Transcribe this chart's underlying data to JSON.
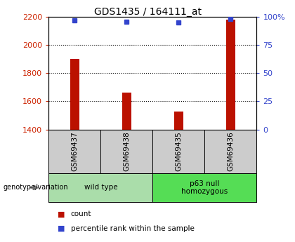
{
  "title": "GDS1435 / 164111_at",
  "samples": [
    "GSM69437",
    "GSM69438",
    "GSM69435",
    "GSM69436"
  ],
  "counts": [
    1900,
    1660,
    1530,
    2180
  ],
  "percentiles": [
    97,
    96,
    95,
    98
  ],
  "groups": [
    {
      "label": "wild type",
      "samples": [
        0,
        1
      ],
      "color": "#66dd66"
    },
    {
      "label": "p63 null\nhomozygous",
      "samples": [
        2,
        3
      ],
      "color": "#44cc44"
    }
  ],
  "ylim_left": [
    1400,
    2200
  ],
  "ylim_right": [
    0,
    100
  ],
  "yticks_left": [
    1400,
    1600,
    1800,
    2000,
    2200
  ],
  "yticks_right": [
    0,
    25,
    50,
    75,
    100
  ],
  "ytick_labels_right": [
    "0",
    "25",
    "50",
    "75",
    "100%"
  ],
  "bar_color": "#bb1100",
  "dot_color": "#3344cc",
  "label_color_left": "#cc2200",
  "label_color_right": "#3344cc",
  "legend_count_label": "count",
  "legend_percentile_label": "percentile rank within the sample",
  "genotype_label": "genotype/variation",
  "sample_box_color": "#cccccc",
  "group1_color": "#aaddaa",
  "group2_color": "#55dd55"
}
